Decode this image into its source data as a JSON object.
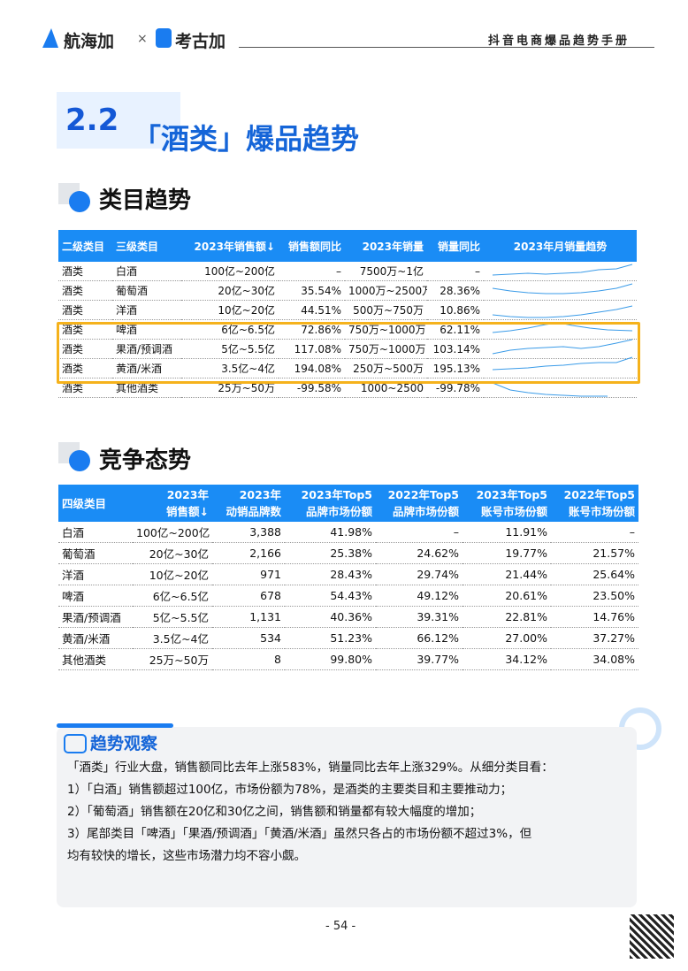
{
  "header": {
    "brand1": "航海加",
    "sep": "×",
    "brand2": "考古加",
    "right": "抖音电商爆品趋势手册"
  },
  "section": {
    "number": "2.2",
    "title": "「酒类」爆品趋势"
  },
  "table1": {
    "heading": "类目趋势",
    "columns": [
      "二级类目",
      "三级类目",
      "2023年销售额↓",
      "销售额同比",
      "2023年销量",
      "销量同比",
      "2023年月销量趋势"
    ],
    "rows": [
      [
        "酒类",
        "白酒",
        "100亿~200亿",
        "–",
        "7500万~1亿",
        "–"
      ],
      [
        "酒类",
        "葡萄酒",
        "20亿~30亿",
        "35.54%",
        "1000万~2500万",
        "28.36%"
      ],
      [
        "酒类",
        "洋酒",
        "10亿~20亿",
        "44.51%",
        "500万~750万",
        "10.86%"
      ],
      [
        "酒类",
        "啤酒",
        "6亿~6.5亿",
        "72.86%",
        "750万~1000万",
        "62.11%"
      ],
      [
        "酒类",
        "果酒/预调酒",
        "5亿~5.5亿",
        "117.08%",
        "750万~1000万",
        "103.14%"
      ],
      [
        "酒类",
        "黄酒/米酒",
        "3.5亿~4亿",
        "194.08%",
        "250万~500万",
        "195.13%"
      ],
      [
        "酒类",
        "其他酒类",
        "25万~50万",
        "-99.58%",
        "1000~2500",
        "-99.78%"
      ]
    ]
  },
  "table2": {
    "heading": "竞争态势",
    "columns": [
      [
        "四级类目"
      ],
      [
        "2023年",
        "销售额↓"
      ],
      [
        "2023年",
        "动销品牌数"
      ],
      [
        "2023年Top5",
        "品牌市场份额"
      ],
      [
        "2022年Top5",
        "品牌市场份额"
      ],
      [
        "2023年Top5",
        "账号市场份额"
      ],
      [
        "2022年Top5",
        "账号市场份额"
      ]
    ],
    "rows": [
      [
        "白酒",
        "100亿~200亿",
        "3,388",
        "41.98%",
        "–",
        "11.91%",
        "–"
      ],
      [
        "葡萄酒",
        "20亿~30亿",
        "2,166",
        "25.38%",
        "24.62%",
        "19.77%",
        "21.57%"
      ],
      [
        "洋酒",
        "10亿~20亿",
        "971",
        "28.43%",
        "29.74%",
        "21.44%",
        "25.64%"
      ],
      [
        "啤酒",
        "6亿~6.5亿",
        "678",
        "54.43%",
        "49.12%",
        "20.61%",
        "23.50%"
      ],
      [
        "果酒/预调酒",
        "5亿~5.5亿",
        "1,131",
        "40.36%",
        "39.31%",
        "22.81%",
        "14.76%"
      ],
      [
        "黄酒/米酒",
        "3.5亿~4亿",
        "534",
        "51.23%",
        "66.12%",
        "27.00%",
        "37.27%"
      ],
      [
        "其他酒类",
        "25万~50万",
        "8",
        "99.80%",
        "39.77%",
        "34.12%",
        "34.08%"
      ]
    ]
  },
  "observation": {
    "title": "趋势观察",
    "lines": [
      "「酒类」行业大盘，销售额同比去年上涨583%，销量同比去年上涨329%。从细分类目看：",
      "1）「白酒」销售额超过100亿，市场份额为78%，是酒类的主要类目和主要推动力；",
      "2）「葡萄酒」销售额在20亿和30亿之间，销售额和销量都有较大幅度的增加；",
      "3）尾部类目「啤酒」「果酒/预调酒」「黄酒/米酒」虽然只各占的市场份额不超过3%，但",
      "均有较快的增长，这些市场潜力均不容小觑。"
    ]
  },
  "footer": {
    "page": "- 54 -"
  }
}
